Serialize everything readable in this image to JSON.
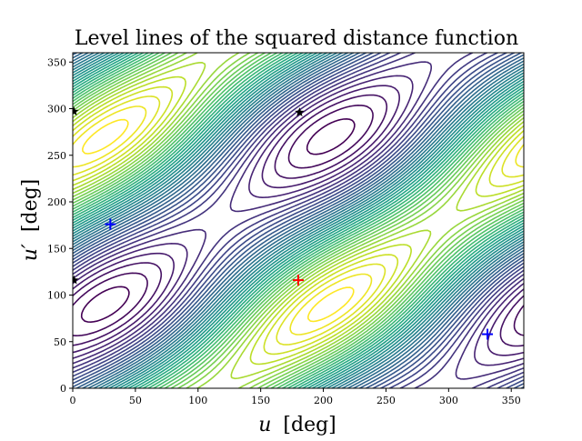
{
  "chart_data": {
    "type": "contour",
    "title": "Level lines of the squared distance function",
    "xlabel_symbol": "u",
    "xlabel_unit": "[deg]",
    "ylabel_symbol": "u′",
    "ylabel_unit": "[deg]",
    "xlim": [
      0,
      360
    ],
    "ylim": [
      0,
      360
    ],
    "x_ticks": [
      0,
      50,
      100,
      150,
      200,
      250,
      300,
      350
    ],
    "y_ticks": [
      0,
      50,
      100,
      150,
      200,
      250,
      300,
      350
    ],
    "grid": false,
    "colormap": "viridis",
    "contour_line_color_low": "#440154",
    "contour_line_color_high": "#fde725",
    "contour_levels_approx": 40,
    "markers": [
      {
        "symbol": "plus",
        "color": "#ff0000",
        "x": 180,
        "y": 116,
        "kind": "maximum"
      },
      {
        "symbol": "plus",
        "color": "#0000ff",
        "x": 30,
        "y": 176,
        "kind": "minimum"
      },
      {
        "symbol": "plus",
        "color": "#0000ff",
        "x": 331,
        "y": 58,
        "kind": "minimum"
      },
      {
        "symbol": "star",
        "color": "#000000",
        "x": 181,
        "y": 296,
        "kind": "saddle"
      },
      {
        "symbol": "star",
        "color": "#000000",
        "x": 1,
        "y": 297,
        "kind": "saddle"
      },
      {
        "symbol": "star",
        "color": "#000000",
        "x": 1,
        "y": 116,
        "kind": "saddle"
      }
    ]
  }
}
